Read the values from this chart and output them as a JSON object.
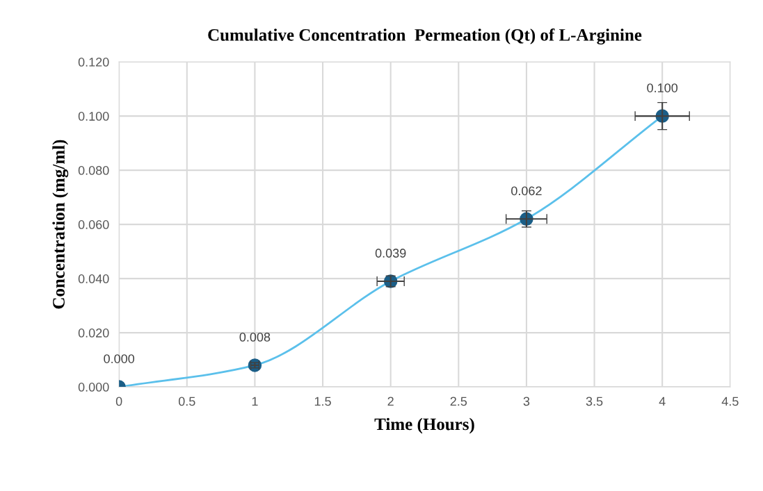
{
  "chart_data": {
    "type": "line",
    "title": "Cumulative Concentration  Permeation (Qt) of L-Arginine",
    "xlabel": "Time (Hours)",
    "ylabel": "Concentration (mg/ml)",
    "x": [
      0,
      1,
      2,
      3,
      4
    ],
    "series": [
      {
        "color": "#5bc0eb",
        "colors": [
          "#1b5e87",
          "#1b5e87",
          "#1b5e87",
          "#1b5e87",
          "#1b5e87"
        ],
        "values": [
          0.0,
          0.008,
          0.039,
          0.062,
          0.1
        ],
        "value_labels": [
          "0.000",
          "0.008",
          "0.039",
          "0.062",
          "0.100"
        ],
        "errors": [
          null,
          0.001,
          0.002,
          0.003,
          0.005
        ],
        "xerrors": [
          null,
          0.03,
          0.1,
          0.15,
          0.2
        ]
      }
    ],
    "xlim": [
      0,
      4.5
    ],
    "xticks": [
      0,
      0.5,
      1,
      1.5,
      2,
      2.5,
      3,
      3.5,
      4,
      4.5
    ],
    "ylim": [
      0,
      0.12
    ],
    "yticks": [
      {
        "value": 0,
        "label": "0.000"
      },
      {
        "value": 0.02,
        "label": "0.020"
      },
      {
        "value": 0.04,
        "label": "0.040"
      },
      {
        "value": 0.06,
        "label": "0.060"
      },
      {
        "value": 0.08,
        "label": "0.080"
      },
      {
        "value": 0.1,
        "label": "0.100"
      },
      {
        "value": 0.12,
        "label": "0.120"
      }
    ],
    "grid": true,
    "marker": "circle",
    "line_style": "solid",
    "legend": false
  }
}
